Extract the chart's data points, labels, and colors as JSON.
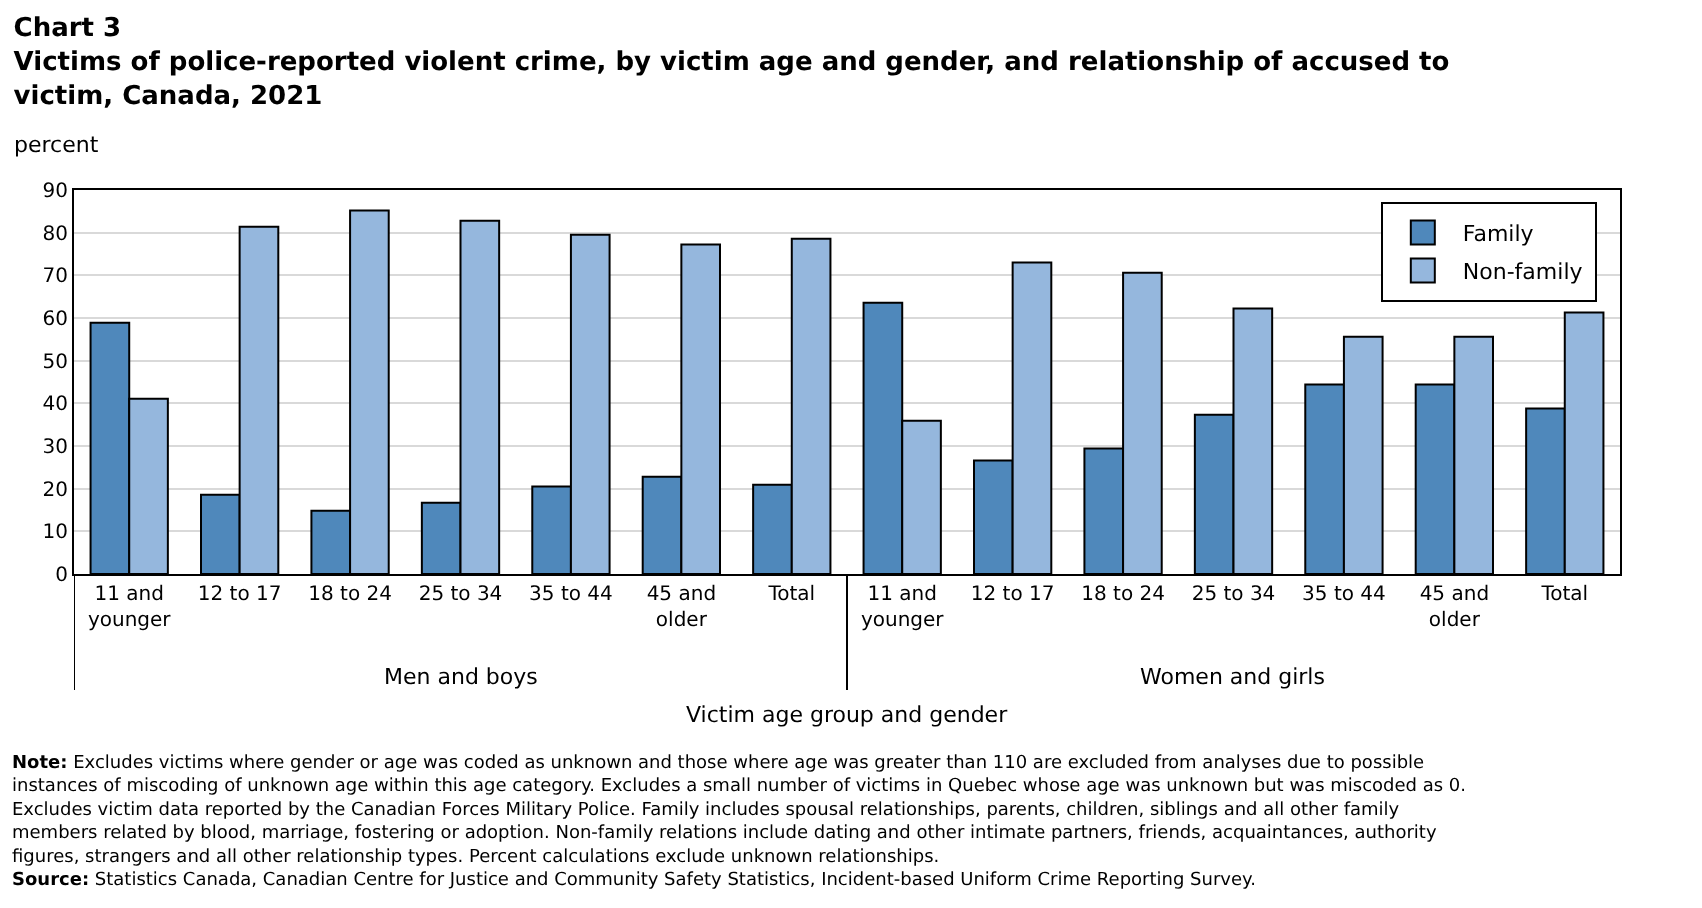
{
  "chart_data": {
    "type": "bar",
    "title": "Chart 3",
    "subtitle": "Victims of police-reported violent crime, by victim age and gender, and relationship of accused to victim, Canada, 2021",
    "ylabel": "percent",
    "xlabel": "Victim age group and gender",
    "categories": [
      "11 and younger",
      "12 to 17",
      "18 to 24",
      "25 to 34",
      "35 to 44",
      "45 and older",
      "Total",
      "11 and younger",
      "12 to 17",
      "18 to 24",
      "25 to 34",
      "35 to 44",
      "45 and older",
      "Total"
    ],
    "series": [
      {
        "name": "Family",
        "color": "#4f88bb",
        "values": [
          58.9,
          18.6,
          14.8,
          16.7,
          20.5,
          22.8,
          20.9,
          63.6,
          26.6,
          29.4,
          37.3,
          44.4,
          44.4,
          38.8
        ]
      },
      {
        "name": "Non-family",
        "color": "#95b7dd",
        "values": [
          41.1,
          81.4,
          85.2,
          82.8,
          79.5,
          77.2,
          78.6,
          35.9,
          73.0,
          70.6,
          62.2,
          55.6,
          55.6,
          61.3
        ]
      }
    ],
    "ylim": [
      0,
      90
    ],
    "yticks": [
      0,
      10,
      20,
      30,
      40,
      50,
      60,
      70,
      80,
      90
    ],
    "grid": "y",
    "legend": "top right",
    "annotations": [
      "Men and boys",
      "Women and girls",
      "Note: Excludes victims where gender or age was coded as unknown and those where age was greater than 110 are excluded from analyses due to possible instances of miscoding of unknown age within this age category. Excludes a small number of victims in Quebec whose age was unknown but was miscoded as 0. Excludes victim data reported by the Canadian Forces Military Police. Family includes spousal relationships, parents, children, siblings and all other family members related by blood, marriage, fostering or adoption. Non-family relations include dating and other intimate partners, friends, acquaintances, authority figures, strangers and all other relationship types. Percent calculations exclude unknown relationships.",
      "Source: Statistics Canada, Canadian Centre for Justice and Community Safety Statistics, Incident-based Uniform Crime Reporting Survey."
    ]
  }
}
